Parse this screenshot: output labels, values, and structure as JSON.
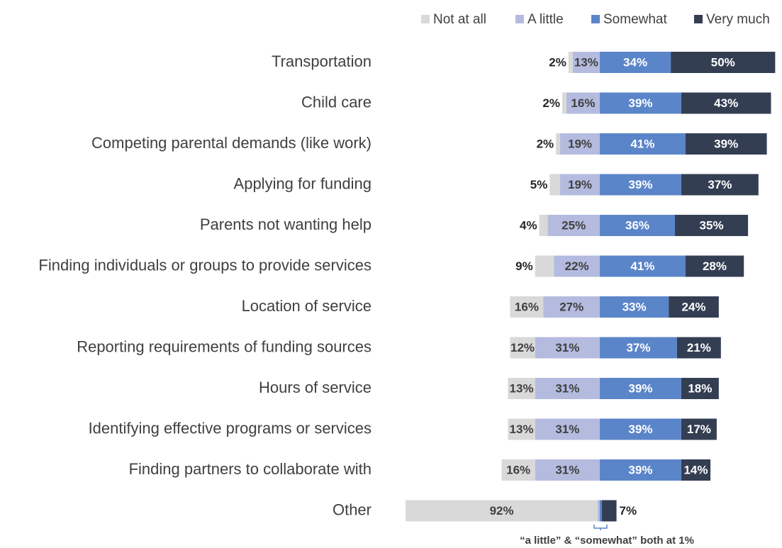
{
  "chart_data": {
    "type": "diverging_bar",
    "categories": [
      "Transportation",
      "Child care",
      "Competing parental demands (like work)",
      "Applying for funding",
      "Parents not wanting help",
      "Finding individuals or groups to provide services",
      "Location of service",
      "Reporting requirements of funding sources",
      "Hours of service",
      "Identifying effective programs or services",
      "Finding partners to collaborate with",
      "Other"
    ],
    "series": [
      {
        "name": "Not at all",
        "color": "#d9d9d9",
        "side": "left",
        "values": [
          2,
          2,
          2,
          5,
          4,
          9,
          16,
          12,
          13,
          13,
          16,
          92
        ],
        "value_labels": [
          "2%",
          "2%",
          "2%",
          "5%",
          "4%",
          "9%",
          "16%",
          "12%",
          "13%",
          "13%",
          "16%",
          "92%"
        ]
      },
      {
        "name": "A little",
        "color": "#b4bbdf",
        "side": "left",
        "values": [
          13,
          16,
          19,
          19,
          25,
          22,
          27,
          31,
          31,
          31,
          31,
          1
        ],
        "value_labels": [
          "13%",
          "16%",
          "19%",
          "19%",
          "25%",
          "22%",
          "27%",
          "31%",
          "31%",
          "31%",
          "31%",
          null
        ]
      },
      {
        "name": "Somewhat",
        "color": "#5b85c9",
        "side": "right",
        "values": [
          34,
          39,
          41,
          39,
          36,
          41,
          33,
          37,
          39,
          39,
          39,
          1
        ],
        "value_labels": [
          "34%",
          "39%",
          "41%",
          "39%",
          "36%",
          "41%",
          "33%",
          "37%",
          "39%",
          "39%",
          "39%",
          null
        ]
      },
      {
        "name": "Very much",
        "color": "#343e53",
        "side": "right",
        "values": [
          50,
          43,
          39,
          37,
          35,
          28,
          24,
          21,
          18,
          17,
          14,
          7
        ],
        "value_labels": [
          "50%",
          "43%",
          "39%",
          "37%",
          "35%",
          "28%",
          "24%",
          "21%",
          "18%",
          "17%",
          "14%",
          "7%"
        ]
      }
    ],
    "legend": "top-right",
    "annotation": "“a little” & “somewhat” both at 1%"
  }
}
